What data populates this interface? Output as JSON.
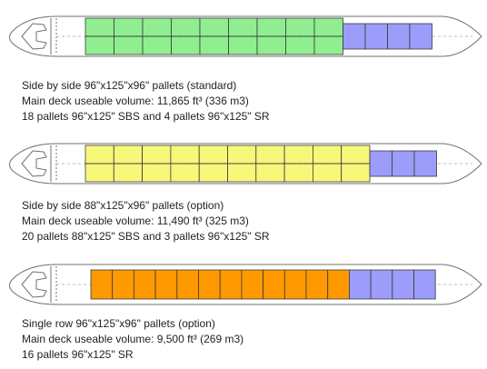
{
  "colors": {
    "outline": "#707070",
    "grid": "#3a3a3a",
    "centerline": "#bbbbbb",
    "sbs_standard": "#90ee90",
    "sbs_option": "#f7f77a",
    "single_row": "#ff9900",
    "sr_pallet": "#9c9cfa"
  },
  "configs": [
    {
      "sbs_columns": 9,
      "main_color_key": "sbs_standard",
      "sr_count": 4,
      "caption": [
        "Side by side 96\"x125\"x96\" pallets (standard)",
        "Main deck useable volume: 11,865 ft³ (336 m3)",
        "18 pallets 96\"x125\" SBS and 4 pallets 96\"x125\" SR"
      ]
    },
    {
      "sbs_columns": 10,
      "main_color_key": "sbs_option",
      "sr_count": 3,
      "caption": [
        "Side by side 88\"x125\"x96\" pallets (option)",
        "Main deck useable volume: 11,490 ft³ (325 m3)",
        "20 pallets 88\"x125\" SBS and 3 pallets 96\"x125\" SR"
      ]
    },
    {
      "single_row_count": 12,
      "main_color_key": "single_row",
      "sr_count": 4,
      "caption": [
        "Single row 96\"x125\"x96\" pallets (option)",
        "Main deck useable volume: 9,500 ft³ (269 m3)",
        "16 pallets 96\"x125\" SR"
      ]
    }
  ]
}
